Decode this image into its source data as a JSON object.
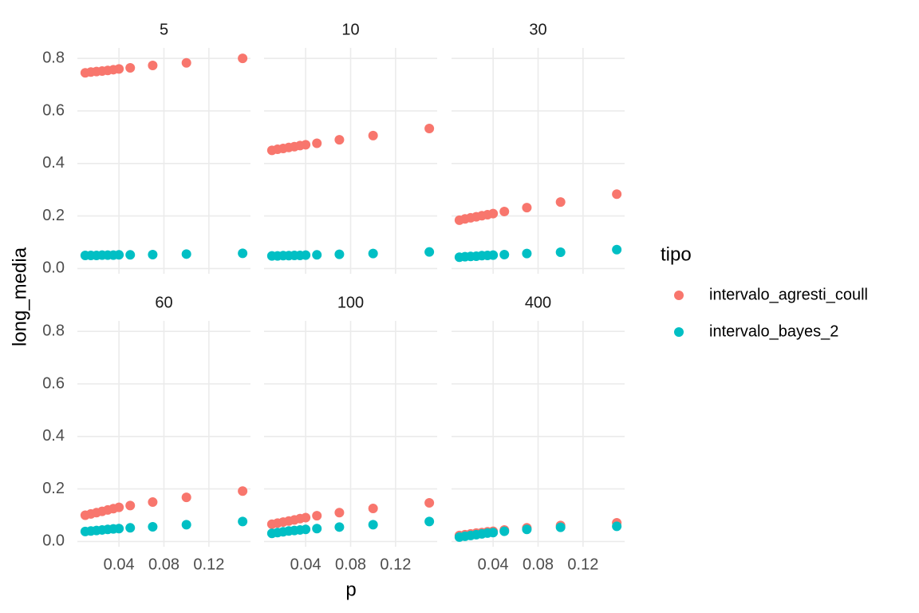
{
  "xlabel": "p",
  "ylabel": "long_media",
  "legend": {
    "title": "tipo",
    "entries": [
      {
        "name": "intervalo_agresti_coull",
        "color": "#f8766d"
      },
      {
        "name": "intervalo_bayes_2",
        "color": "#00bfc4"
      }
    ]
  },
  "chart_data": [
    {
      "type": "scatter",
      "title": "5",
      "x": [
        0.01,
        0.015,
        0.02,
        0.025,
        0.03,
        0.035,
        0.04,
        0.05,
        0.07,
        0.1,
        0.15
      ],
      "series": [
        {
          "values": [
            0.745,
            0.748,
            0.75,
            0.752,
            0.754,
            0.757,
            0.76,
            0.764,
            0.773,
            0.783,
            0.8
          ]
        },
        {
          "values": [
            0.05,
            0.05,
            0.05,
            0.051,
            0.051,
            0.051,
            0.052,
            0.052,
            0.053,
            0.055,
            0.058
          ]
        }
      ],
      "xlim": [
        0.003,
        0.157
      ],
      "ylim": [
        -0.02,
        0.84
      ],
      "xticks": [
        0.04,
        0.08,
        0.12
      ],
      "yticks": [
        {
          "value": 0,
          "label": "0.0"
        },
        0.2,
        0.4,
        0.6,
        0.8
      ],
      "grid": true
    },
    {
      "type": "scatter",
      "title": "10",
      "x": [
        0.01,
        0.015,
        0.02,
        0.025,
        0.03,
        0.035,
        0.04,
        0.05,
        0.07,
        0.1,
        0.15
      ],
      "series": [
        {
          "values": [
            0.45,
            0.454,
            0.457,
            0.461,
            0.464,
            0.468,
            0.471,
            0.477,
            0.49,
            0.506,
            0.533
          ]
        },
        {
          "values": [
            0.048,
            0.048,
            0.049,
            0.049,
            0.05,
            0.05,
            0.051,
            0.052,
            0.054,
            0.057,
            0.063
          ]
        }
      ],
      "xlim": [
        0.003,
        0.157
      ],
      "ylim": [
        -0.02,
        0.84
      ],
      "xticks": [
        0.04,
        0.08,
        0.12
      ],
      "yticks": [
        {
          "value": 0,
          "label": "0.0"
        },
        0.2,
        0.4,
        0.6,
        0.8
      ],
      "grid": true
    },
    {
      "type": "scatter",
      "title": "30",
      "x": [
        0.01,
        0.015,
        0.02,
        0.025,
        0.03,
        0.035,
        0.04,
        0.05,
        0.07,
        0.1,
        0.15
      ],
      "series": [
        {
          "values": [
            0.184,
            0.189,
            0.193,
            0.197,
            0.201,
            0.205,
            0.209,
            0.217,
            0.232,
            0.253,
            0.283
          ]
        },
        {
          "values": [
            0.043,
            0.045,
            0.046,
            0.047,
            0.049,
            0.05,
            0.051,
            0.053,
            0.057,
            0.062,
            0.072
          ]
        }
      ],
      "xlim": [
        0.003,
        0.157
      ],
      "ylim": [
        -0.02,
        0.84
      ],
      "xticks": [
        0.04,
        0.08,
        0.12
      ],
      "yticks": [
        {
          "value": 0,
          "label": "0.0"
        },
        0.2,
        0.4,
        0.6,
        0.8
      ],
      "grid": true
    },
    {
      "type": "scatter",
      "title": "60",
      "x": [
        0.01,
        0.015,
        0.02,
        0.025,
        0.03,
        0.035,
        0.04,
        0.05,
        0.07,
        0.1,
        0.15
      ],
      "series": [
        {
          "values": [
            0.1,
            0.105,
            0.11,
            0.115,
            0.12,
            0.125,
            0.13,
            0.137,
            0.15,
            0.168,
            0.192
          ]
        },
        {
          "values": [
            0.038,
            0.04,
            0.042,
            0.044,
            0.046,
            0.048,
            0.049,
            0.052,
            0.056,
            0.064,
            0.076
          ]
        }
      ],
      "xlim": [
        0.003,
        0.157
      ],
      "ylim": [
        -0.02,
        0.84
      ],
      "xticks": [
        0.04,
        0.08,
        0.12
      ],
      "yticks": [
        {
          "value": 0,
          "label": "0.0"
        },
        0.2,
        0.4,
        0.6,
        0.8
      ],
      "grid": true
    },
    {
      "type": "scatter",
      "title": "100",
      "x": [
        0.01,
        0.015,
        0.02,
        0.025,
        0.03,
        0.035,
        0.04,
        0.05,
        0.07,
        0.1,
        0.15
      ],
      "series": [
        {
          "values": [
            0.066,
            0.07,
            0.074,
            0.078,
            0.082,
            0.087,
            0.091,
            0.098,
            0.11,
            0.126,
            0.147
          ]
        },
        {
          "values": [
            0.031,
            0.034,
            0.037,
            0.04,
            0.042,
            0.044,
            0.046,
            0.049,
            0.055,
            0.064,
            0.076
          ]
        }
      ],
      "xlim": [
        0.003,
        0.157
      ],
      "ylim": [
        -0.02,
        0.84
      ],
      "xticks": [
        0.04,
        0.08,
        0.12
      ],
      "yticks": [
        {
          "value": 0,
          "label": "0.0"
        },
        0.2,
        0.4,
        0.6,
        0.8
      ],
      "grid": true
    },
    {
      "type": "scatter",
      "title": "400",
      "x": [
        0.01,
        0.015,
        0.02,
        0.025,
        0.03,
        0.035,
        0.04,
        0.05,
        0.07,
        0.1,
        0.15
      ],
      "series": [
        {
          "values": [
            0.023,
            0.026,
            0.029,
            0.032,
            0.034,
            0.037,
            0.039,
            0.044,
            0.052,
            0.061,
            0.071
          ]
        },
        {
          "values": [
            0.017,
            0.02,
            0.023,
            0.026,
            0.029,
            0.032,
            0.034,
            0.039,
            0.046,
            0.054,
            0.058
          ]
        }
      ],
      "xlim": [
        0.003,
        0.157
      ],
      "ylim": [
        -0.02,
        0.84
      ],
      "xticks": [
        0.04,
        0.08,
        0.12
      ],
      "yticks": [
        {
          "value": 0,
          "label": "0.0"
        },
        0.2,
        0.4,
        0.6,
        0.8
      ],
      "grid": true
    }
  ]
}
